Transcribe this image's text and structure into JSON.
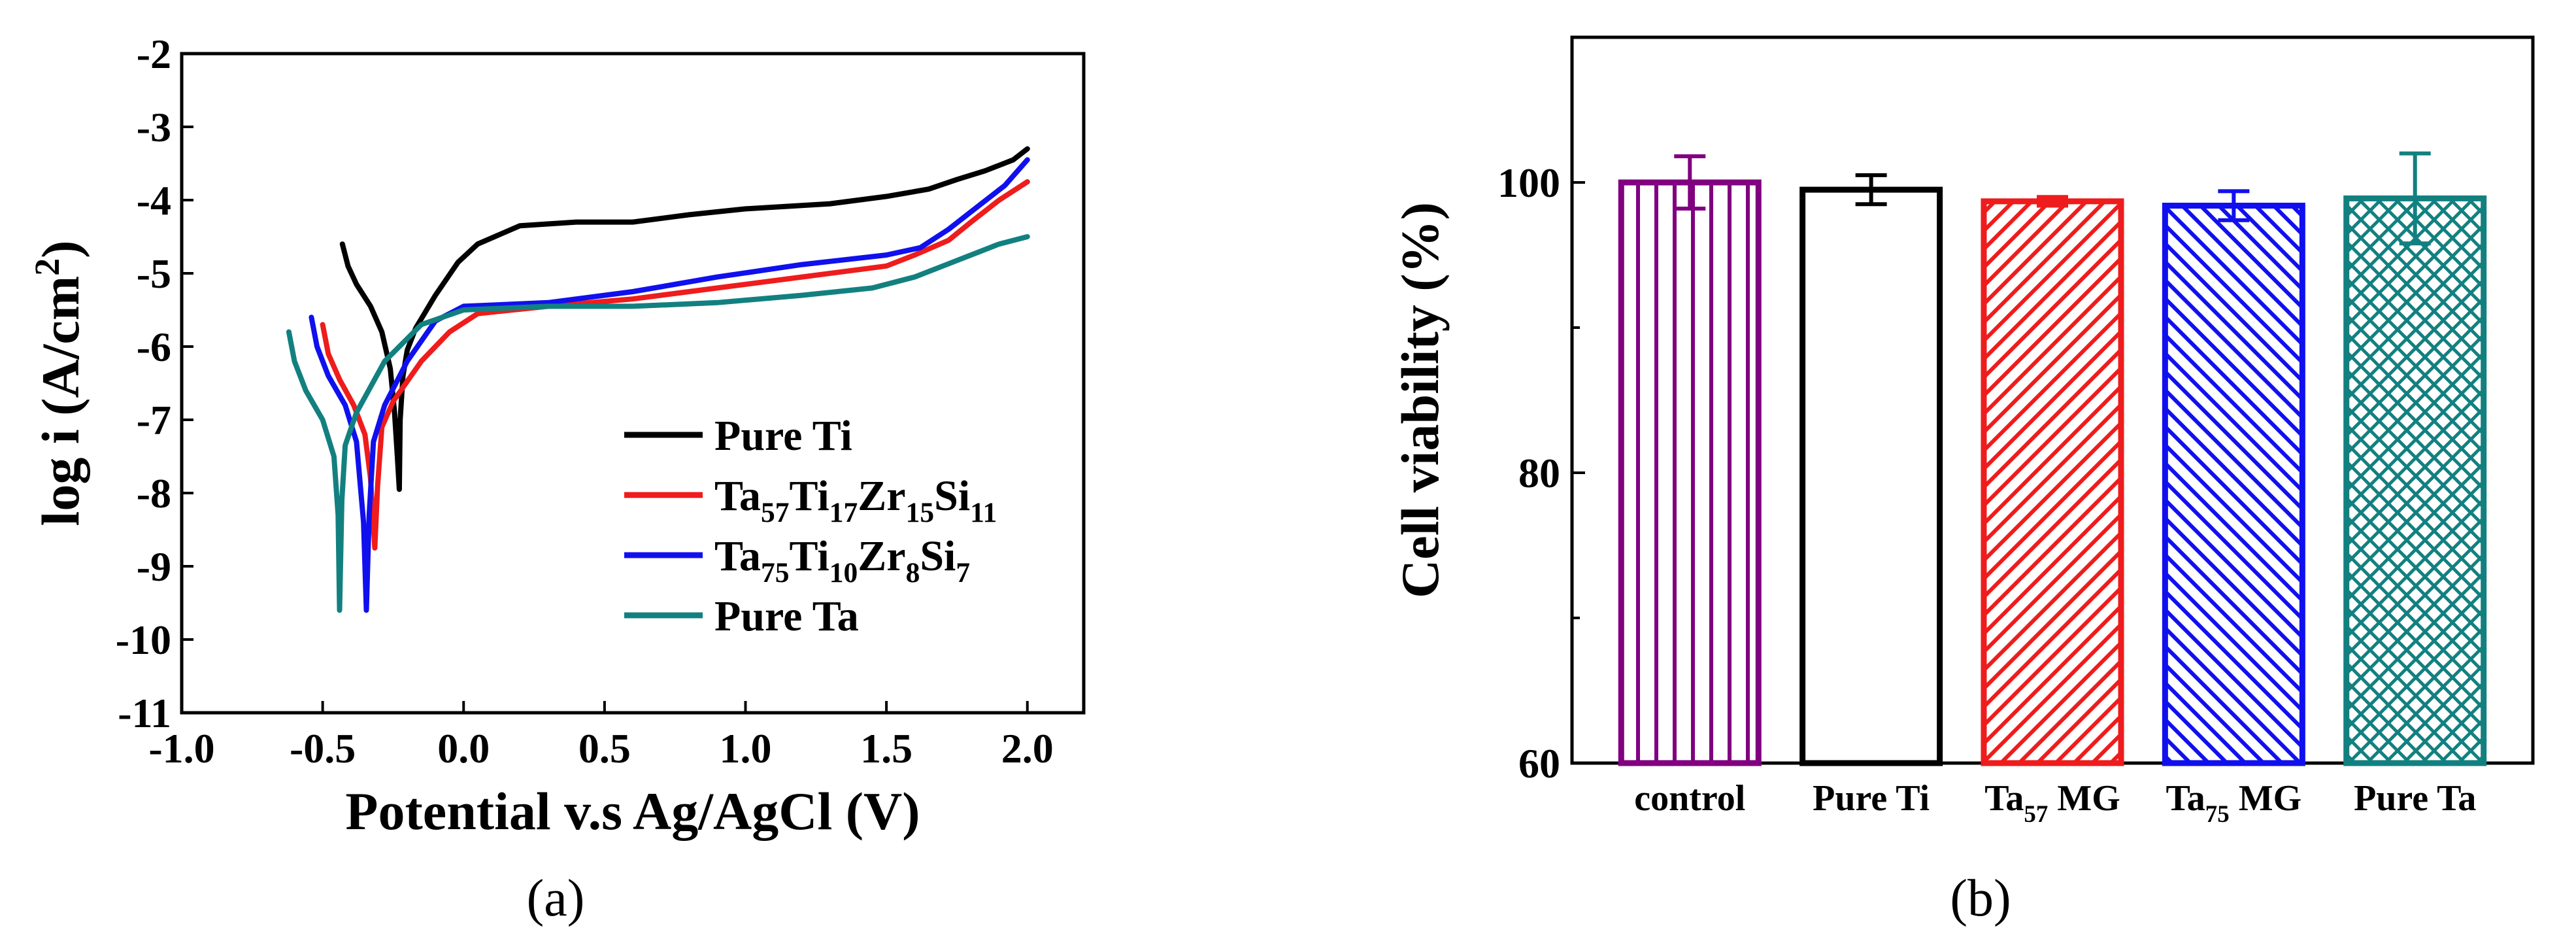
{
  "chart_data": [
    {
      "type": "line",
      "panel_label": "(a)",
      "xlabel": "Potential v.s Ag/AgCl (V)",
      "ylabel": "log i (A/cm",
      "ylabel_sup": "2",
      "ylabel_end": ")",
      "xlim": [
        -1.0,
        2.2
      ],
      "ylim": [
        -11,
        -2
      ],
      "xticks": [
        "-1.0",
        "-0.5",
        "0.0",
        "0.5",
        "1.0",
        "1.5",
        "2.0"
      ],
      "xtick_values": [
        -1.0,
        -0.5,
        0.0,
        0.5,
        1.0,
        1.5,
        2.0
      ],
      "yticks": [
        "-2",
        "-3",
        "-4",
        "-5",
        "-6",
        "-7",
        "-8",
        "-9",
        "-10",
        "-11"
      ],
      "ytick_values": [
        -2,
        -3,
        -4,
        -5,
        -6,
        -7,
        -8,
        -9,
        -10,
        -11
      ],
      "legend_position": "bottom-right",
      "series": [
        {
          "name": "Pure Ti",
          "legend": [
            {
              "t": "Pure Ti"
            }
          ],
          "color": "#000000",
          "points": [
            [
              -0.43,
              -4.6
            ],
            [
              -0.41,
              -4.9
            ],
            [
              -0.38,
              -5.15
            ],
            [
              -0.33,
              -5.45
            ],
            [
              -0.29,
              -5.8
            ],
            [
              -0.26,
              -6.3
            ],
            [
              -0.245,
              -6.9
            ],
            [
              -0.235,
              -7.5
            ],
            [
              -0.228,
              -7.95
            ],
            [
              -0.225,
              -7.0
            ],
            [
              -0.215,
              -6.4
            ],
            [
              -0.2,
              -6.05
            ],
            [
              -0.17,
              -5.75
            ],
            [
              -0.1,
              -5.3
            ],
            [
              -0.02,
              -4.85
            ],
            [
              0.05,
              -4.6
            ],
            [
              0.2,
              -4.35
            ],
            [
              0.4,
              -4.3
            ],
            [
              0.6,
              -4.3
            ],
            [
              0.8,
              -4.2
            ],
            [
              1.0,
              -4.12
            ],
            [
              1.3,
              -4.05
            ],
            [
              1.5,
              -3.95
            ],
            [
              1.65,
              -3.85
            ],
            [
              1.75,
              -3.72
            ],
            [
              1.85,
              -3.6
            ],
            [
              1.95,
              -3.45
            ],
            [
              2.0,
              -3.3
            ]
          ]
        },
        {
          "name": "Ta57Ti17Zr15Si11",
          "legend": [
            {
              "t": "Ta"
            },
            {
              "t": "57",
              "sub": true
            },
            {
              "t": "Ti"
            },
            {
              "t": "17",
              "sub": true
            },
            {
              "t": "Zr"
            },
            {
              "t": "15",
              "sub": true
            },
            {
              "t": "Si"
            },
            {
              "t": "11",
              "sub": true
            }
          ],
          "color": "#ee1c1c",
          "points": [
            [
              -0.5,
              -5.7
            ],
            [
              -0.48,
              -6.1
            ],
            [
              -0.44,
              -6.45
            ],
            [
              -0.39,
              -6.8
            ],
            [
              -0.35,
              -7.2
            ],
            [
              -0.33,
              -7.8
            ],
            [
              -0.315,
              -8.75
            ],
            [
              -0.305,
              -7.9
            ],
            [
              -0.29,
              -7.1
            ],
            [
              -0.25,
              -6.75
            ],
            [
              -0.15,
              -6.2
            ],
            [
              -0.05,
              -5.8
            ],
            [
              0.05,
              -5.55
            ],
            [
              0.3,
              -5.45
            ],
            [
              0.6,
              -5.35
            ],
            [
              0.9,
              -5.2
            ],
            [
              1.2,
              -5.05
            ],
            [
              1.5,
              -4.9
            ],
            [
              1.6,
              -4.75
            ],
            [
              1.72,
              -4.55
            ],
            [
              1.8,
              -4.3
            ],
            [
              1.9,
              -4.0
            ],
            [
              2.0,
              -3.75
            ]
          ]
        },
        {
          "name": "Ta75Ti10Zr8Si7",
          "legend": [
            {
              "t": "Ta"
            },
            {
              "t": "75",
              "sub": true
            },
            {
              "t": "Ti"
            },
            {
              "t": "10",
              "sub": true
            },
            {
              "t": "Zr"
            },
            {
              "t": "8",
              "sub": true
            },
            {
              "t": "Si"
            },
            {
              "t": "7",
              "sub": true
            }
          ],
          "color": "#1010ee",
          "points": [
            [
              -0.54,
              -5.6
            ],
            [
              -0.52,
              -6.0
            ],
            [
              -0.48,
              -6.4
            ],
            [
              -0.42,
              -6.8
            ],
            [
              -0.38,
              -7.3
            ],
            [
              -0.355,
              -8.4
            ],
            [
              -0.345,
              -9.6
            ],
            [
              -0.335,
              -8.3
            ],
            [
              -0.32,
              -7.3
            ],
            [
              -0.28,
              -6.8
            ],
            [
              -0.2,
              -6.2
            ],
            [
              -0.1,
              -5.65
            ],
            [
              0.0,
              -5.45
            ],
            [
              0.3,
              -5.4
            ],
            [
              0.6,
              -5.25
            ],
            [
              0.9,
              -5.05
            ],
            [
              1.2,
              -4.88
            ],
            [
              1.5,
              -4.75
            ],
            [
              1.62,
              -4.65
            ],
            [
              1.72,
              -4.4
            ],
            [
              1.82,
              -4.1
            ],
            [
              1.92,
              -3.8
            ],
            [
              2.0,
              -3.45
            ]
          ]
        },
        {
          "name": "Pure Ta",
          "legend": [
            {
              "t": "Pure Ta"
            }
          ],
          "color": "#138080",
          "points": [
            [
              -0.62,
              -5.8
            ],
            [
              -0.6,
              -6.2
            ],
            [
              -0.56,
              -6.6
            ],
            [
              -0.5,
              -7.0
            ],
            [
              -0.46,
              -7.5
            ],
            [
              -0.445,
              -8.3
            ],
            [
              -0.44,
              -9.6
            ],
            [
              -0.432,
              -8.1
            ],
            [
              -0.42,
              -7.35
            ],
            [
              -0.38,
              -6.9
            ],
            [
              -0.28,
              -6.2
            ],
            [
              -0.15,
              -5.7
            ],
            [
              0.0,
              -5.5
            ],
            [
              0.3,
              -5.45
            ],
            [
              0.6,
              -5.45
            ],
            [
              0.9,
              -5.4
            ],
            [
              1.2,
              -5.3
            ],
            [
              1.45,
              -5.2
            ],
            [
              1.6,
              -5.05
            ],
            [
              1.7,
              -4.9
            ],
            [
              1.8,
              -4.75
            ],
            [
              1.9,
              -4.6
            ],
            [
              2.0,
              -4.5
            ]
          ]
        }
      ]
    },
    {
      "type": "bar",
      "panel_label": "(b)",
      "ylabel": "Cell viability (%)",
      "ylim": [
        60,
        110
      ],
      "yticks": [
        "60",
        "80",
        "100"
      ],
      "ytick_values": [
        60,
        80,
        100
      ],
      "categories": [
        "control",
        "Pure Ti",
        "Ta57 MG",
        "Ta75 MG",
        "Pure Ta"
      ],
      "category_labels": [
        [
          {
            "t": "control"
          }
        ],
        [
          {
            "t": "Pure Ti"
          }
        ],
        [
          {
            "t": "Ta"
          },
          {
            "t": "57",
            "sub": true
          },
          {
            "t": " MG"
          }
        ],
        [
          {
            "t": "Ta"
          },
          {
            "t": "75",
            "sub": true
          },
          {
            "t": " MG"
          }
        ],
        [
          {
            "t": "Pure Ta"
          }
        ]
      ],
      "values": [
        100.0,
        99.5,
        98.7,
        98.4,
        98.9
      ],
      "errors": [
        1.8,
        1.0,
        0.3,
        1.0,
        3.1
      ],
      "colors": [
        "#800080",
        "#000000",
        "#ee1c1c",
        "#1010ee",
        "#138080"
      ],
      "patterns": [
        "vertical",
        "none",
        "diagonal-up",
        "diagonal-down",
        "crosshatch"
      ]
    }
  ]
}
